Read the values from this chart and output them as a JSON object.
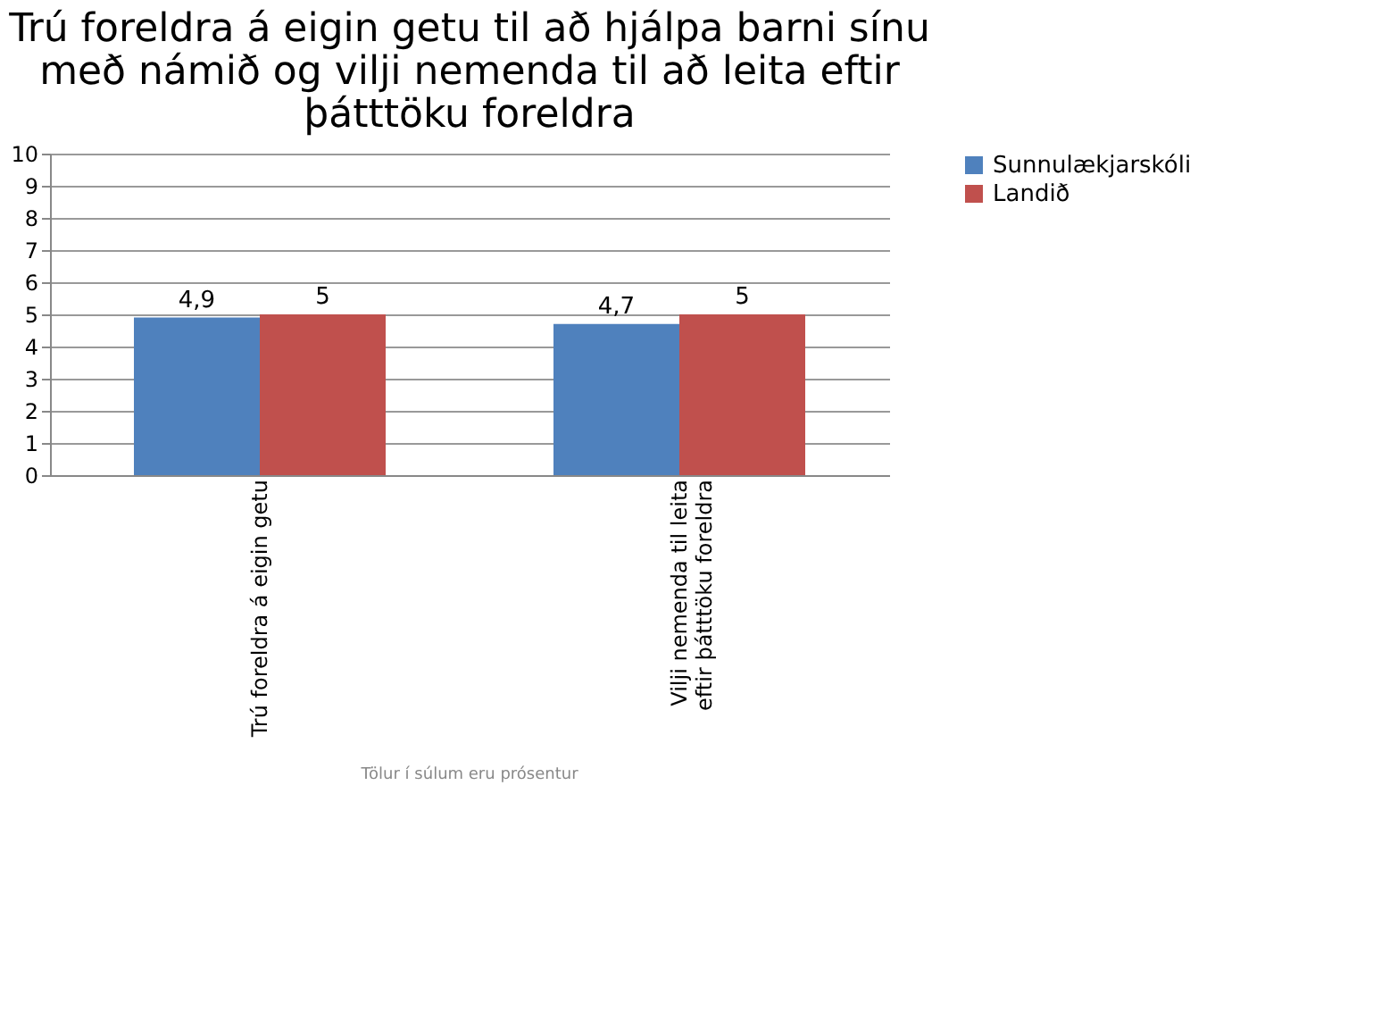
{
  "chart_data": {
    "type": "bar",
    "title": "Trú foreldra á eigin getu til að hjálpa barni sínu með námið og vilji nemenda til að leita eftir þátttöku foreldra",
    "categories": [
      "Trú foreldra á eigin getu",
      "Vilji nemenda til leita eftir þátttöku foreldra"
    ],
    "series": [
      {
        "name": "Sunnulækjarskóli",
        "color": "#4f81bd",
        "values": [
          4.9,
          4.7
        ],
        "value_labels": [
          "4,9",
          "4,7"
        ]
      },
      {
        "name": "Landið",
        "color": "#c0504d",
        "values": [
          5,
          5
        ],
        "value_labels": [
          "5",
          "5"
        ]
      }
    ],
    "ylim": [
      0,
      10
    ],
    "yticks": [
      0,
      1,
      2,
      3,
      4,
      5,
      6,
      7,
      8,
      9,
      10
    ],
    "grid": "y",
    "legend": "right",
    "annotations": [
      "Tölur í súlum eru prósentur"
    ]
  }
}
